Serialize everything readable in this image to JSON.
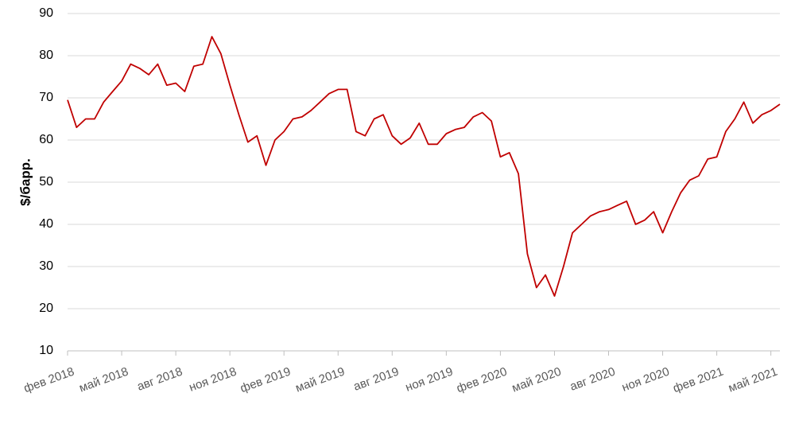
{
  "chart_data": {
    "type": "line",
    "y_label": "$/барр.",
    "categories": [
      "фев 2018",
      null,
      null,
      null,
      null,
      null,
      "май 2018",
      null,
      null,
      null,
      null,
      null,
      "авг 2018",
      null,
      null,
      null,
      null,
      null,
      "ноя 2018",
      null,
      null,
      null,
      null,
      null,
      "фев 2019",
      null,
      null,
      null,
      null,
      null,
      "май 2019",
      null,
      null,
      null,
      null,
      null,
      "авг 2019",
      null,
      null,
      null,
      null,
      null,
      "ноя 2019",
      null,
      null,
      null,
      null,
      null,
      "фев 2020",
      null,
      null,
      null,
      null,
      null,
      "май 2020",
      null,
      null,
      null,
      null,
      null,
      "авг 2020",
      null,
      null,
      null,
      null,
      null,
      "ноя 2020",
      null,
      null,
      null,
      null,
      null,
      "фев 2021",
      null,
      null,
      null,
      null,
      null,
      "май 2021",
      null
    ],
    "values": [
      69.5,
      63,
      65,
      65,
      69,
      71.5,
      74,
      78,
      77,
      75.5,
      78,
      73,
      73.5,
      71.5,
      77.5,
      78,
      84.5,
      80.5,
      73,
      66,
      59.5,
      61,
      54,
      60,
      62,
      65,
      65.5,
      67,
      69,
      71,
      72,
      72,
      62,
      61,
      65,
      66,
      61,
      59,
      60.5,
      64,
      59,
      59,
      61.5,
      62.5,
      63,
      65.5,
      66.5,
      64.5,
      56,
      57,
      52,
      33,
      25,
      28,
      23,
      30,
      38,
      40,
      42,
      43,
      43.5,
      44.5,
      45.5,
      40,
      41,
      43,
      38,
      43,
      47.5,
      50.5,
      51.5,
      55.5,
      56,
      62,
      65,
      69,
      64,
      66,
      67,
      68.5
    ],
    "color": "#c00000",
    "ylim": [
      10,
      90
    ],
    "yticks": [
      10,
      20,
      30,
      40,
      50,
      60,
      70,
      80,
      90
    ],
    "grid": true
  }
}
